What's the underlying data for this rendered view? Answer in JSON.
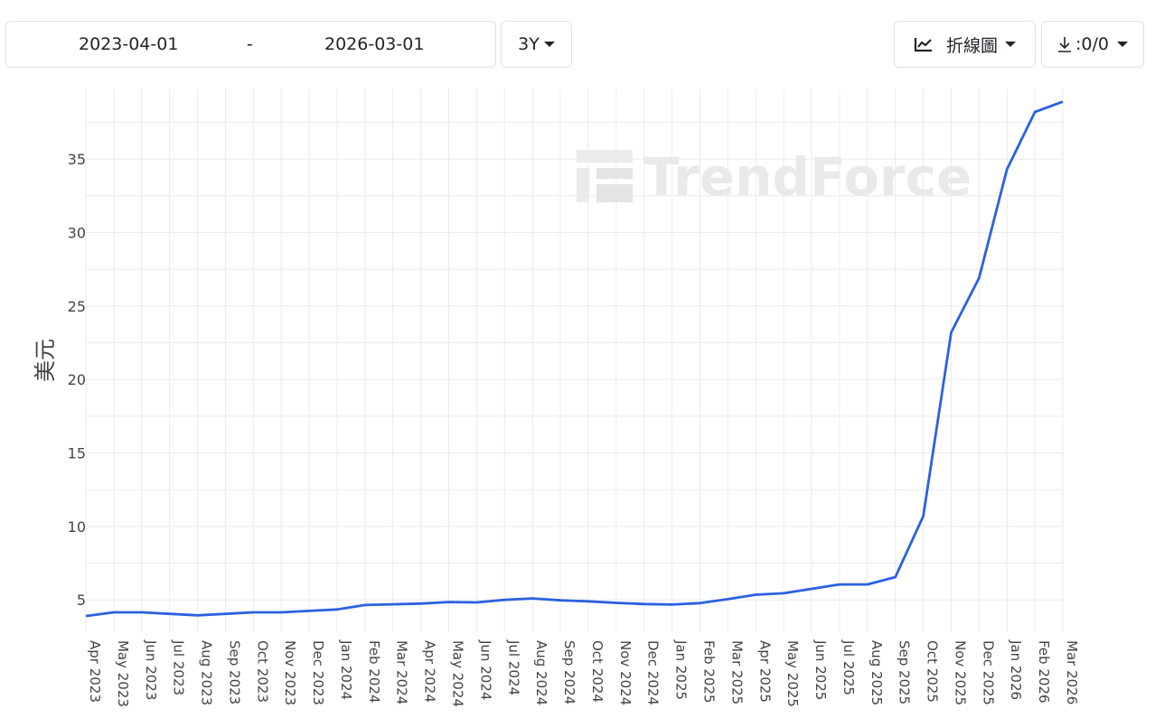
{
  "toolbar": {
    "start_date": "2023-04-01",
    "separator": "-",
    "end_date": "2026-03-01",
    "range_label": "3Y",
    "chart_type_label": "折線圖",
    "download_label": ":0/0"
  },
  "watermark": "TrendForce",
  "colors": {
    "line": "#2b61e0",
    "grid": "#ebebeb"
  },
  "chart_data": {
    "type": "line",
    "ylabel": "美元",
    "xlabel": "",
    "ylim": [
      2.8,
      39.8
    ],
    "yticks": [
      5,
      10,
      15,
      20,
      25,
      30,
      35
    ],
    "grid": true,
    "categories": [
      "Apr 2023",
      "May 2023",
      "Jun 2023",
      "Jul 2023",
      "Aug 2023",
      "Sep 2023",
      "Oct 2023",
      "Nov 2023",
      "Dec 2023",
      "Jan 2024",
      "Feb 2024",
      "Mar 2024",
      "Apr 2024",
      "May 2024",
      "Jun 2024",
      "Jul 2024",
      "Aug 2024",
      "Sep 2024",
      "Oct 2024",
      "Nov 2024",
      "Dec 2024",
      "Jan 2025",
      "Feb 2025",
      "Mar 2025",
      "Apr 2025",
      "May 2025",
      "Jun 2025",
      "Jul 2025",
      "Aug 2025",
      "Sep 2025",
      "Oct 2025",
      "Nov 2025",
      "Dec 2025",
      "Jan 2026",
      "Feb 2026",
      "Mar 2026"
    ],
    "values": [
      3.9,
      4.15,
      4.15,
      4.05,
      3.95,
      4.05,
      4.15,
      4.15,
      4.25,
      4.35,
      4.65,
      4.7,
      4.75,
      4.85,
      4.83,
      5.0,
      5.1,
      4.97,
      4.9,
      4.8,
      4.72,
      4.68,
      4.78,
      5.05,
      5.35,
      5.45,
      5.75,
      6.05,
      6.05,
      6.55,
      10.7,
      23.2,
      26.9,
      34.3,
      38.2,
      38.9
    ]
  }
}
